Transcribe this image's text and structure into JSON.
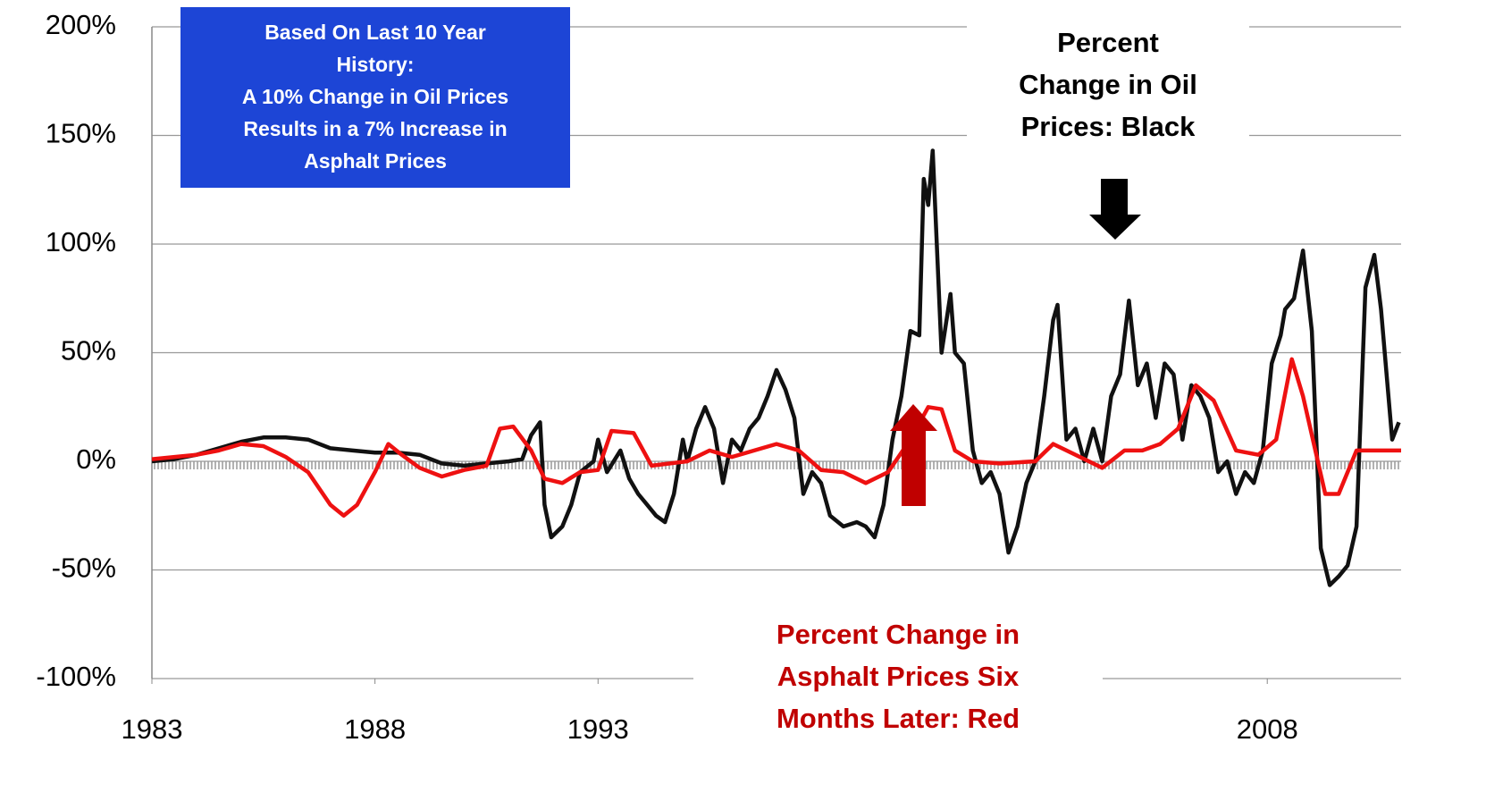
{
  "chart_data": {
    "type": "line",
    "xlim": [
      1983,
      2011
    ],
    "xticks": [
      1983,
      1988,
      1993,
      2008
    ],
    "ylim": [
      -100,
      200
    ],
    "yticks": [
      {
        "value": -100,
        "label": "-100%"
      },
      {
        "value": -50,
        "label": "-50%"
      },
      {
        "value": 0,
        "label": "0%"
      },
      {
        "value": 50,
        "label": "50%"
      },
      {
        "value": 100,
        "label": "100%"
      },
      {
        "value": 150,
        "label": "150%"
      },
      {
        "value": 200,
        "label": "200%"
      }
    ],
    "grid": true,
    "annotations": [
      {
        "lines": [
          "Based On Last 10 Year",
          "History:",
          "A 10% Change in Oil Prices",
          "Results in a 7% Increase in",
          "Asphalt Prices"
        ],
        "color": "#ffffff"
      },
      {
        "lines": [
          "Percent",
          "Change in Oil",
          "Prices: Black"
        ],
        "color": "#000000"
      },
      {
        "lines": [
          "Percent Change in",
          "Asphalt Prices Six",
          "Months Later: Red"
        ],
        "color": "#c00000"
      }
    ],
    "series": [
      {
        "color": "#111111",
        "x": [
          1983.0,
          1983.5,
          1984.0,
          1984.5,
          1985.0,
          1985.5,
          1986.0,
          1986.5,
          1987.0,
          1987.5,
          1988.0,
          1988.5,
          1989.0,
          1989.5,
          1990.0,
          1990.5,
          1991.0,
          1991.3,
          1991.5,
          1991.7,
          1991.8,
          1991.95,
          1992.2,
          1992.4,
          1992.6,
          1992.9,
          1993.0,
          1993.2,
          1993.5,
          1993.7,
          1993.9,
          1994.1,
          1994.3,
          1994.5,
          1994.7,
          1994.9,
          1995.0,
          1995.2,
          1995.4,
          1995.6,
          1995.8,
          1996.0,
          1996.2,
          1996.4,
          1996.6,
          1996.8,
          1997.0,
          1997.2,
          1997.4,
          1997.6,
          1997.8,
          1998.0,
          1998.2,
          1998.5,
          1998.8,
          1999.0,
          1999.2,
          1999.4,
          1999.6,
          1999.8,
          2000.0,
          2000.2,
          2000.3,
          2000.4,
          2000.5,
          2000.7,
          2000.9,
          2001.0,
          2001.2,
          2001.4,
          2001.6,
          2001.8,
          2002.0,
          2002.2,
          2002.4,
          2002.6,
          2002.8,
          2003.0,
          2003.2,
          2003.3,
          2003.5,
          2003.7,
          2003.9,
          2004.1,
          2004.3,
          2004.5,
          2004.7,
          2004.9,
          2005.1,
          2005.3,
          2005.5,
          2005.7,
          2005.9,
          2006.1,
          2006.3,
          2006.5,
          2006.7,
          2006.9,
          2007.1,
          2007.3,
          2007.5,
          2007.7,
          2007.9,
          2008.1,
          2008.3,
          2008.4,
          2008.6,
          2008.8,
          2009.0,
          2009.2,
          2009.4,
          2009.6,
          2009.8,
          2010.0,
          2010.2,
          2010.4,
          2010.55,
          2010.8,
          2010.95
        ],
        "values": [
          0,
          1,
          3,
          6,
          9,
          11,
          11,
          10,
          6,
          5,
          4,
          4,
          3,
          -1,
          -2,
          -1,
          0,
          1,
          12,
          18,
          -20,
          -35,
          -30,
          -20,
          -5,
          0,
          10,
          -5,
          5,
          -8,
          -15,
          -20,
          -25,
          -28,
          -15,
          10,
          0,
          15,
          25,
          15,
          -10,
          10,
          5,
          15,
          20,
          30,
          42,
          33,
          20,
          -15,
          -5,
          -10,
          -25,
          -30,
          -28,
          -30,
          -35,
          -20,
          10,
          30,
          60,
          58,
          130,
          118,
          143,
          50,
          77,
          50,
          45,
          5,
          -10,
          -5,
          -15,
          -42,
          -30,
          -10,
          0,
          30,
          65,
          72,
          10,
          15,
          0,
          15,
          0,
          30,
          40,
          74,
          35,
          45,
          20,
          45,
          40,
          10,
          35,
          30,
          20,
          -5,
          0,
          -15,
          -5,
          -10,
          5,
          45,
          58,
          70,
          75,
          97,
          60,
          -40,
          -57,
          -53,
          -48,
          -30,
          80,
          95,
          70,
          10,
          18
        ]
      },
      {
        "color": "#ee1111",
        "x": [
          1983.0,
          1984.0,
          1984.5,
          1985.0,
          1985.5,
          1986.0,
          1986.5,
          1987.0,
          1987.3,
          1987.6,
          1988.0,
          1988.3,
          1988.6,
          1989.0,
          1989.5,
          1990.0,
          1990.5,
          1990.8,
          1991.1,
          1991.5,
          1991.8,
          1992.2,
          1992.6,
          1993.0,
          1993.3,
          1993.8,
          1994.2,
          1995.0,
          1995.5,
          1996.0,
          1996.5,
          1997.0,
          1997.5,
          1998.0,
          1998.5,
          1999.0,
          1999.5,
          2000.0,
          2000.4,
          2000.7,
          2001.0,
          2001.4,
          2002.0,
          2002.8,
          2003.2,
          2003.8,
          2004.3,
          2004.8,
          2005.2,
          2005.6,
          2006.0,
          2006.4,
          2006.8,
          2007.3,
          2007.8,
          2008.2,
          2008.55,
          2008.8,
          2009.3,
          2009.6,
          2010.0,
          2010.5,
          2011.0
        ],
        "values": [
          1,
          3,
          5,
          8,
          7,
          2,
          -5,
          -20,
          -25,
          -20,
          -5,
          8,
          3,
          -3,
          -7,
          -4,
          -2,
          15,
          16,
          5,
          -8,
          -10,
          -5,
          -4,
          14,
          13,
          -2,
          0,
          5,
          2,
          5,
          8,
          5,
          -4,
          -5,
          -10,
          -5,
          10,
          25,
          24,
          5,
          0,
          -1,
          0,
          8,
          2,
          -3,
          5,
          5,
          8,
          15,
          35,
          28,
          5,
          3,
          10,
          47,
          30,
          -15,
          -15,
          5,
          5,
          5
        ]
      }
    ]
  }
}
